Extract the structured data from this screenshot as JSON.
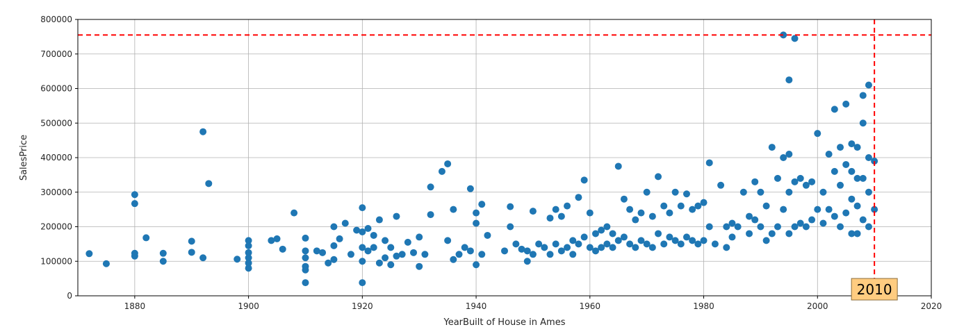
{
  "chart_data": {
    "type": "scatter",
    "title": "",
    "xlabel": "YearBuilt of House in Ames",
    "ylabel": "SalesPrice",
    "xlim": [
      1870,
      2020
    ],
    "ylim": [
      0,
      800000
    ],
    "xticks": [
      1880,
      1900,
      1920,
      1940,
      1960,
      1980,
      2000,
      2020
    ],
    "yticks": [
      0,
      100000,
      200000,
      300000,
      400000,
      500000,
      600000,
      700000,
      800000
    ],
    "grid": true,
    "marker_color": "#1f77b4",
    "reference_lines": {
      "horizontal": {
        "y": 755000,
        "color": "#ff0000",
        "style": "dashed"
      },
      "vertical": {
        "x": 2010,
        "color": "#ff0000",
        "style": "dashed"
      }
    },
    "annotation": {
      "text": "2010",
      "x": 2010,
      "y": 10000,
      "box_color": "#ffcc80"
    },
    "x": [
      1872,
      1875,
      1880,
      1880,
      1880,
      1880,
      1882,
      1885,
      1885,
      1890,
      1890,
      1892,
      1892,
      1893,
      1898,
      1900,
      1900,
      1900,
      1900,
      1900,
      1900,
      1904,
      1905,
      1906,
      1908,
      1910,
      1910,
      1910,
      1910,
      1910,
      1910,
      1912,
      1913,
      1914,
      1915,
      1915,
      1915,
      1916,
      1917,
      1918,
      1919,
      1920,
      1920,
      1920,
      1920,
      1920,
      1921,
      1921,
      1922,
      1922,
      1923,
      1923,
      1924,
      1924,
      1925,
      1925,
      1926,
      1926,
      1927,
      1928,
      1929,
      1930,
      1930,
      1931,
      1932,
      1932,
      1934,
      1935,
      1935,
      1936,
      1936,
      1937,
      1938,
      1939,
      1939,
      1940,
      1940,
      1940,
      1941,
      1941,
      1942,
      1945,
      1946,
      1946,
      1947,
      1948,
      1949,
      1949,
      1950,
      1950,
      1951,
      1952,
      1953,
      1953,
      1954,
      1954,
      1955,
      1955,
      1956,
      1956,
      1957,
      1957,
      1958,
      1958,
      1959,
      1959,
      1960,
      1960,
      1961,
      1961,
      1962,
      1962,
      1963,
      1963,
      1964,
      1964,
      1965,
      1965,
      1966,
      1966,
      1967,
      1967,
      1968,
      1968,
      1969,
      1969,
      1970,
      1970,
      1971,
      1971,
      1972,
      1972,
      1973,
      1973,
      1974,
      1974,
      1975,
      1975,
      1976,
      1976,
      1977,
      1977,
      1978,
      1978,
      1979,
      1979,
      1980,
      1980,
      1981,
      1981,
      1982,
      1983,
      1984,
      1984,
      1985,
      1985,
      1986,
      1987,
      1988,
      1988,
      1989,
      1989,
      1990,
      1990,
      1991,
      1991,
      1992,
      1992,
      1993,
      1993,
      1994,
      1994,
      1994,
      1995,
      1995,
      1995,
      1995,
      1996,
      1996,
      1996,
      1997,
      1997,
      1998,
      1998,
      1999,
      1999,
      2000,
      2000,
      2001,
      2001,
      2002,
      2002,
      2003,
      2003,
      2003,
      2004,
      2004,
      2004,
      2005,
      2005,
      2005,
      2006,
      2006,
      2006,
      2006,
      2007,
      2007,
      2007,
      2007,
      2008,
      2008,
      2008,
      2008,
      2009,
      2009,
      2009,
      2009,
      2010,
      2010
    ],
    "y": [
      122000,
      93000,
      293000,
      267000,
      123000,
      115000,
      168000,
      123000,
      100000,
      158000,
      126000,
      475000,
      110000,
      325000,
      106000,
      160000,
      145000,
      125000,
      110000,
      95000,
      80000,
      160000,
      165000,
      135000,
      240000,
      167000,
      130000,
      110000,
      85000,
      75000,
      38000,
      130000,
      125000,
      95000,
      200000,
      145000,
      105000,
      165000,
      210000,
      120000,
      190000,
      255000,
      185000,
      140000,
      100000,
      38000,
      195000,
      130000,
      175000,
      140000,
      220000,
      95000,
      160000,
      110000,
      140000,
      90000,
      230000,
      115000,
      120000,
      155000,
      125000,
      170000,
      85000,
      120000,
      315000,
      235000,
      360000,
      382000,
      160000,
      250000,
      105000,
      120000,
      140000,
      310000,
      130000,
      240000,
      210000,
      90000,
      265000,
      120000,
      175000,
      130000,
      258000,
      200000,
      150000,
      135000,
      130000,
      100000,
      245000,
      120000,
      150000,
      140000,
      225000,
      120000,
      250000,
      150000,
      230000,
      130000,
      260000,
      140000,
      160000,
      120000,
      285000,
      150000,
      335000,
      170000,
      240000,
      140000,
      180000,
      130000,
      190000,
      140000,
      200000,
      150000,
      180000,
      140000,
      375000,
      160000,
      280000,
      170000,
      250000,
      150000,
      220000,
      140000,
      240000,
      160000,
      300000,
      150000,
      230000,
      140000,
      345000,
      180000,
      260000,
      150000,
      240000,
      170000,
      300000,
      160000,
      260000,
      150000,
      295000,
      170000,
      250000,
      160000,
      260000,
      150000,
      270000,
      160000,
      385000,
      200000,
      150000,
      320000,
      200000,
      140000,
      210000,
      170000,
      200000,
      300000,
      230000,
      180000,
      330000,
      220000,
      300000,
      200000,
      260000,
      160000,
      430000,
      180000,
      340000,
      200000,
      755000,
      400000,
      250000,
      625000,
      410000,
      300000,
      180000,
      745000,
      330000,
      200000,
      340000,
      210000,
      320000,
      200000,
      330000,
      220000,
      470000,
      250000,
      300000,
      210000,
      410000,
      250000,
      540000,
      360000,
      230000,
      430000,
      320000,
      200000,
      555000,
      380000,
      240000,
      440000,
      360000,
      280000,
      180000,
      430000,
      340000,
      260000,
      180000,
      580000,
      500000,
      340000,
      220000,
      610000,
      400000,
      300000,
      200000,
      390000,
      250000
    ]
  }
}
